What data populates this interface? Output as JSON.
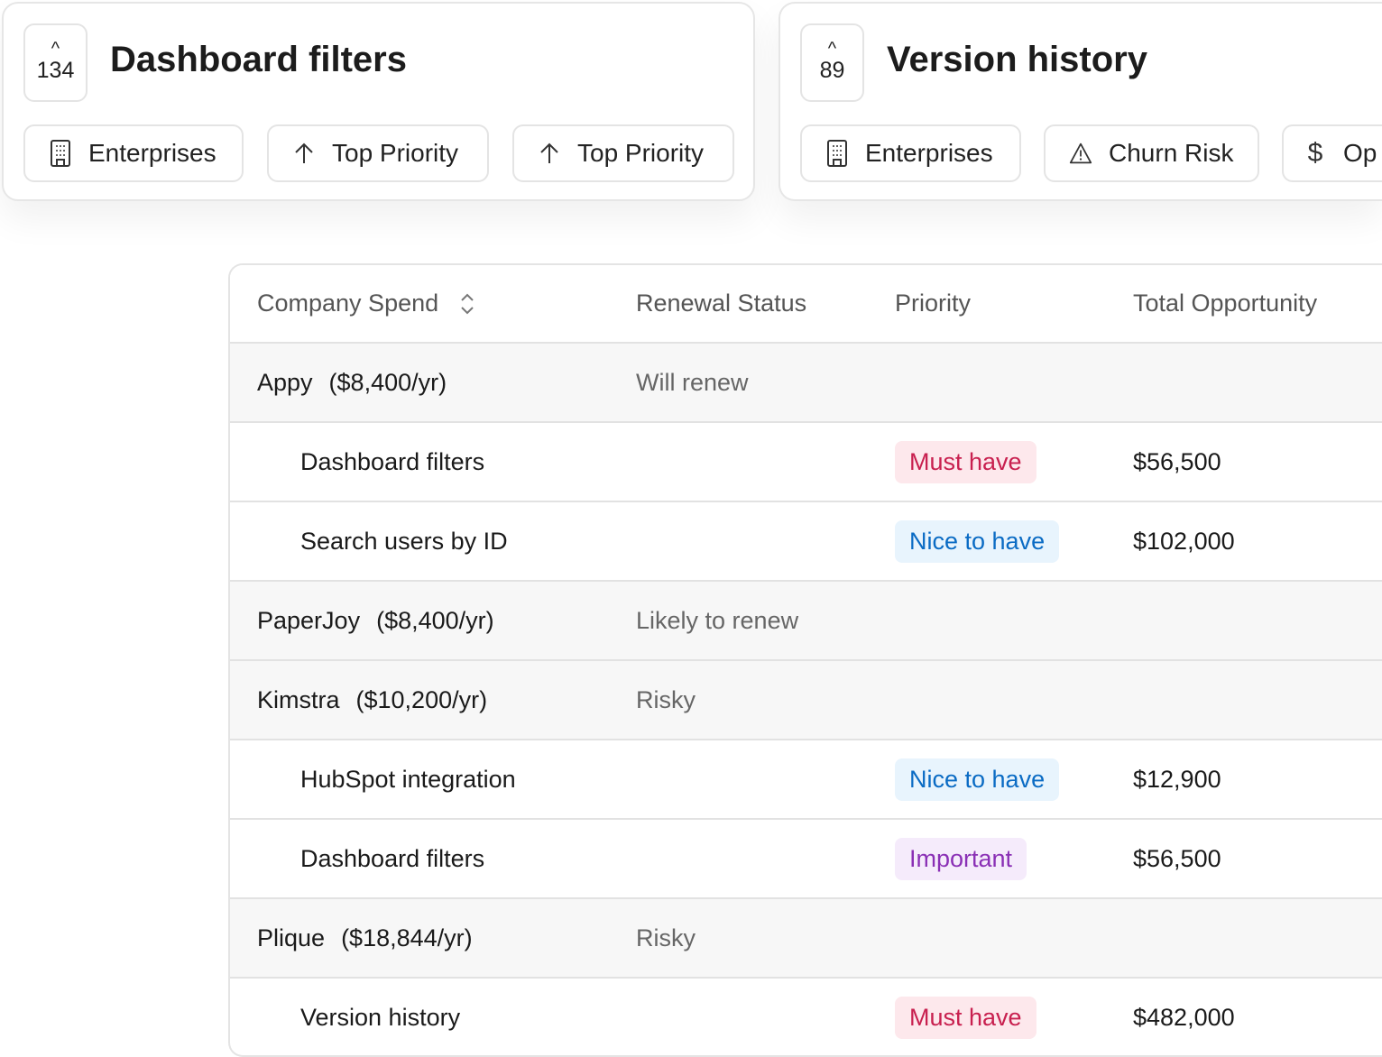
{
  "cards": [
    {
      "count": "134",
      "title": "Dashboard filters",
      "chips": [
        {
          "icon": "building-icon",
          "label": "Enterprises"
        },
        {
          "icon": "arrow-up-icon",
          "label": "Top Priority"
        },
        {
          "icon": "arrow-up-icon",
          "label": "Top Priority"
        }
      ]
    },
    {
      "count": "89",
      "title": "Version history",
      "chips": [
        {
          "icon": "building-icon",
          "label": "Enterprises"
        },
        {
          "icon": "warning-icon",
          "label": "Churn Risk"
        },
        {
          "icon": "dollar-icon",
          "label": "Op"
        }
      ]
    }
  ],
  "table": {
    "headers": [
      "Company Spend",
      "Renewal Status",
      "Priority",
      "Total Opportunity"
    ],
    "rows": [
      {
        "type": "group",
        "company": "Appy",
        "spend": "($8,400/yr)",
        "status": "Will renew"
      },
      {
        "type": "item",
        "name": "Dashboard filters",
        "priority": "Must have",
        "total": "$56,500"
      },
      {
        "type": "item",
        "name": "Search users by ID",
        "priority": "Nice to have",
        "total": "$102,000"
      },
      {
        "type": "group",
        "company": "PaperJoy",
        "spend": "($8,400/yr)",
        "status": "Likely to renew"
      },
      {
        "type": "group",
        "company": "Kimstra",
        "spend": "($10,200/yr)",
        "status": "Risky"
      },
      {
        "type": "item",
        "name": "HubSpot integration",
        "priority": "Nice to have",
        "total": "$12,900"
      },
      {
        "type": "item",
        "name": "Dashboard filters",
        "priority": "Important",
        "total": "$56,500"
      },
      {
        "type": "group",
        "company": "Plique",
        "spend": "($18,844/yr)",
        "status": "Risky"
      },
      {
        "type": "item",
        "name": "Version history",
        "priority": "Must have",
        "total": "$482,000"
      }
    ]
  },
  "colors": {
    "Must have": {
      "bg": "#fde8ec",
      "fg": "#c8204f"
    },
    "Nice to have": {
      "bg": "#e8f4fd",
      "fg": "#0a6bc4"
    },
    "Important": {
      "bg": "#f5ebfb",
      "fg": "#8a2fb5"
    }
  }
}
